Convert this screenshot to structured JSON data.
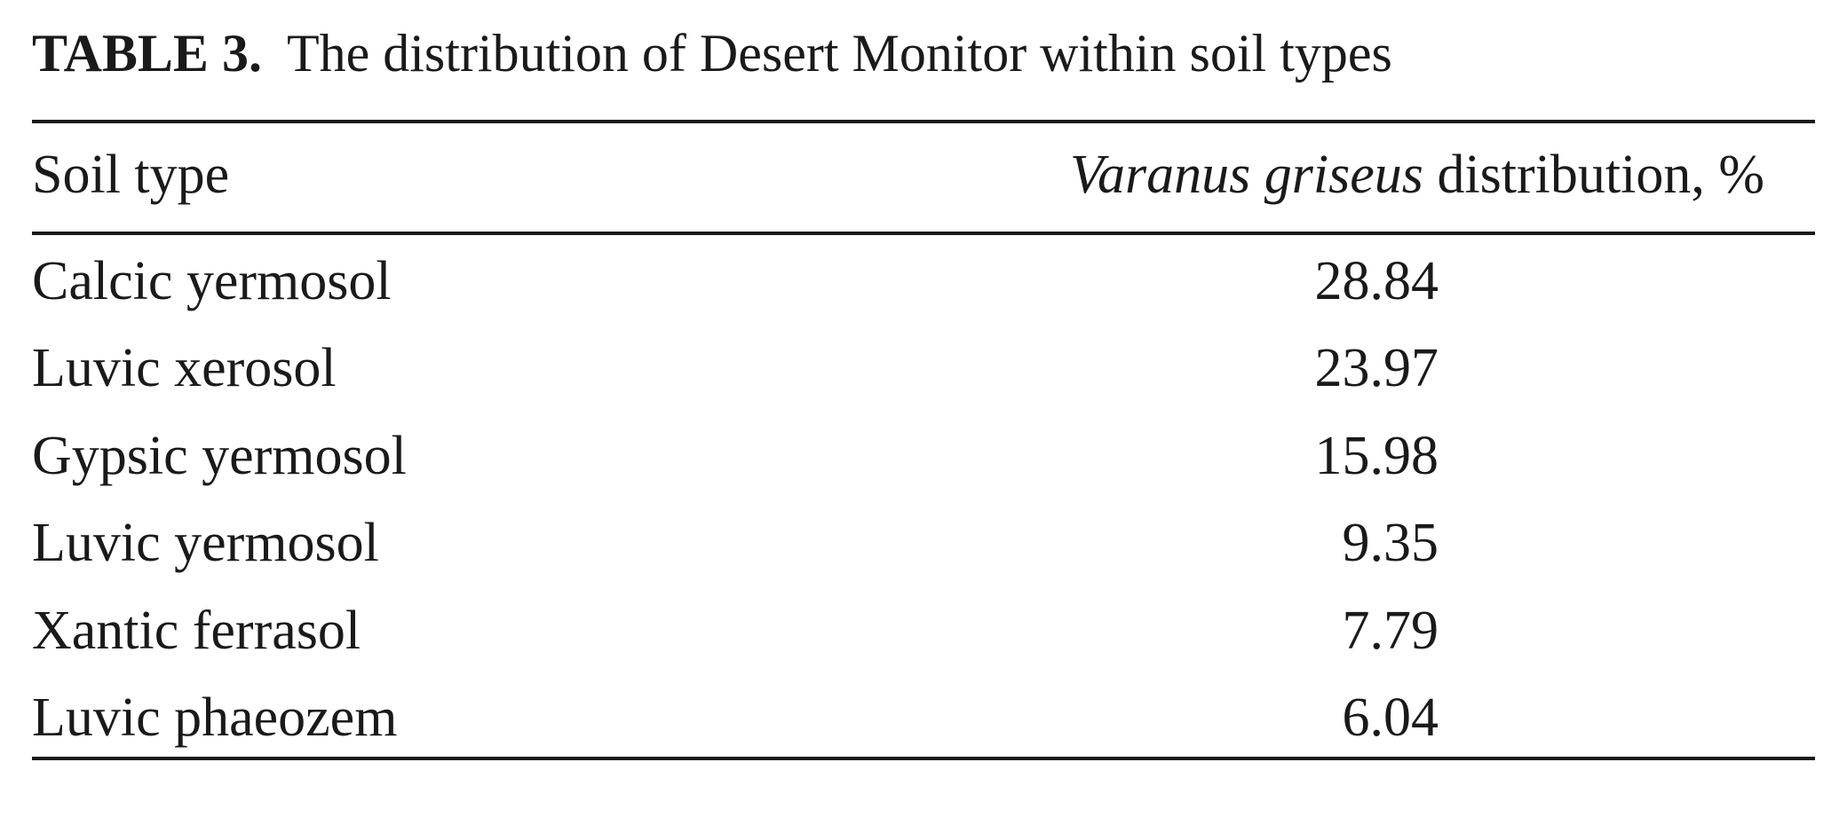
{
  "table": {
    "label": "TABLE 3.",
    "title": "The distribution of Desert Monitor within soil types",
    "header": {
      "first": "Soil type",
      "second_italic": "Varanus griseus",
      "second_rest": "distribution, %"
    },
    "rows": [
      [
        "Calcic yermosol",
        28.84
      ],
      [
        "Luvic xerosol",
        23.97
      ],
      [
        "Gypsic yermosol",
        15.98
      ],
      [
        "Luvic yermosol",
        9.35
      ],
      [
        "Xantic ferrasol",
        7.79
      ],
      [
        "Luvic phaeozem",
        6.04
      ]
    ]
  }
}
